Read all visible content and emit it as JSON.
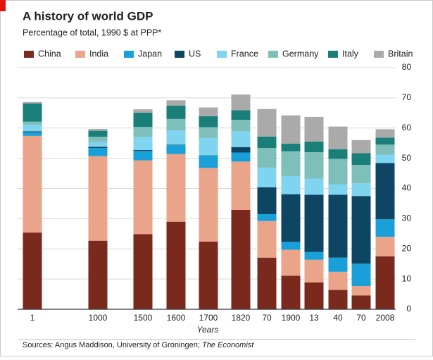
{
  "chart_data": {
    "type": "stacked_bar",
    "title": "A history of world GDP",
    "subtitle": "Percentage of total, 1990 $ at PPP*",
    "xlabel": "Years",
    "source": {
      "text": "Sources: Angus Maddison, University of Groningen; ",
      "publication": "The Economist"
    },
    "categories": [
      "1",
      "1000",
      "1500",
      "1600",
      "1700",
      "1820",
      "70",
      "1900",
      "13",
      "40",
      "70",
      "2008"
    ],
    "ylim": [
      0,
      80
    ],
    "yticks": [
      0,
      10,
      20,
      30,
      40,
      50,
      60,
      70,
      80
    ],
    "grid": true,
    "legend": "top",
    "series": [
      {
        "name": "China",
        "color": "#7a2a1c",
        "values": [
          25.4,
          22.7,
          24.9,
          29.0,
          22.4,
          32.9,
          17.1,
          11.1,
          8.9,
          6.4,
          4.6,
          17.5
        ]
      },
      {
        "name": "India",
        "color": "#e9a48a",
        "values": [
          32.0,
          28.0,
          24.4,
          22.4,
          24.4,
          16.0,
          12.1,
          8.6,
          7.5,
          6.0,
          3.1,
          6.5
        ]
      },
      {
        "name": "Japan",
        "color": "#1aa0d8",
        "values": [
          1.2,
          2.7,
          3.1,
          2.9,
          4.1,
          3.0,
          2.3,
          2.6,
          2.6,
          4.7,
          7.4,
          5.8
        ]
      },
      {
        "name": "US",
        "color": "#0d4563",
        "values": [
          0.3,
          0.4,
          0.3,
          0.2,
          0.1,
          1.8,
          8.9,
          15.8,
          18.9,
          20.8,
          22.4,
          18.6
        ]
      },
      {
        "name": "France",
        "color": "#7fd4f0",
        "values": [
          2.2,
          1.6,
          4.4,
          4.7,
          5.7,
          5.2,
          6.5,
          6.0,
          5.3,
          3.5,
          4.2,
          2.8
        ]
      },
      {
        "name": "Germany",
        "color": "#7ebfba",
        "values": [
          1.0,
          1.7,
          3.3,
          3.8,
          3.6,
          3.8,
          6.5,
          8.2,
          8.8,
          8.4,
          6.1,
          3.3
        ]
      },
      {
        "name": "Italy",
        "color": "#1a7f78",
        "values": [
          6.0,
          2.0,
          4.7,
          4.4,
          3.6,
          3.2,
          3.8,
          2.5,
          3.5,
          3.2,
          3.9,
          2.3
        ]
      },
      {
        "name": "Britain",
        "color": "#aaaaab",
        "values": [
          0.5,
          0.6,
          1.1,
          1.8,
          2.9,
          5.2,
          9.1,
          9.4,
          8.2,
          7.5,
          4.3,
          2.8
        ]
      }
    ]
  }
}
